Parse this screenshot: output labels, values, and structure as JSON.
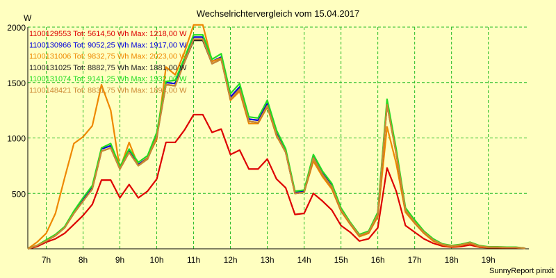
{
  "chart_data": {
    "type": "line",
    "title": "Wechselrichtervergleich vom 15.04.2017",
    "ylabel": "W",
    "xlabel": "",
    "footer": "SunnyReport pinxit",
    "xlim": [
      6.5,
      20.1
    ],
    "ylim": [
      0,
      2000
    ],
    "x_ticks": [
      7,
      8,
      9,
      10,
      11,
      12,
      13,
      14,
      15,
      16,
      17,
      18,
      19
    ],
    "x_tick_labels": [
      "7h",
      "8h",
      "9h",
      "10h",
      "11h",
      "12h",
      "13h",
      "14h",
      "15h",
      "16h",
      "17h",
      "18h",
      "19h"
    ],
    "y_ticks": [
      500,
      1000,
      1500,
      2000
    ],
    "y_tick_labels": [
      "500",
      "1000",
      "1500",
      "2000"
    ],
    "grid": true,
    "legend_position": "top-left",
    "x": [
      6.5,
      6.75,
      7.0,
      7.25,
      7.5,
      7.75,
      8.0,
      8.25,
      8.5,
      8.75,
      9.0,
      9.25,
      9.5,
      9.75,
      10.0,
      10.25,
      10.5,
      10.75,
      11.0,
      11.25,
      11.5,
      11.75,
      12.0,
      12.25,
      12.5,
      12.75,
      13.0,
      13.25,
      13.5,
      13.75,
      14.0,
      14.25,
      14.5,
      14.75,
      15.0,
      15.25,
      15.5,
      15.75,
      16.0,
      16.25,
      16.5,
      16.75,
      17.0,
      17.25,
      17.5,
      17.75,
      18.0,
      18.25,
      18.5,
      18.75,
      19.0,
      19.25,
      19.5,
      19.75,
      20.0
    ],
    "series": [
      {
        "name": "1100129553 Tot: 5614,50 Wh Max: 1218,00 W",
        "color": "#dd0000",
        "values": [
          0,
          20,
          60,
          90,
          140,
          220,
          300,
          400,
          620,
          620,
          460,
          580,
          460,
          520,
          630,
          960,
          960,
          1070,
          1210,
          1210,
          1050,
          1080,
          850,
          890,
          720,
          720,
          810,
          630,
          550,
          310,
          320,
          500,
          430,
          350,
          210,
          150,
          70,
          90,
          190,
          730,
          520,
          210,
          150,
          90,
          50,
          25,
          15,
          20,
          35,
          15,
          10,
          10,
          8,
          8,
          5
        ]
      },
      {
        "name": "1100130966 Tot: 9052,25 Wh Max: 1917,00 W",
        "color": "#0000dd",
        "values": [
          0,
          30,
          70,
          120,
          190,
          330,
          440,
          550,
          900,
          930,
          730,
          880,
          760,
          820,
          1030,
          1500,
          1490,
          1700,
          1910,
          1910,
          1690,
          1730,
          1370,
          1460,
          1170,
          1160,
          1310,
          1040,
          880,
          510,
          520,
          830,
          680,
          570,
          360,
          230,
          120,
          150,
          320,
          1330,
          880,
          360,
          250,
          150,
          80,
          40,
          25,
          35,
          55,
          25,
          15,
          15,
          12,
          12,
          5
        ]
      },
      {
        "name": "1100131006 Tot: 9832,75 Wh Max: 2023,00 W",
        "color": "#ee8800",
        "values": [
          0,
          60,
          140,
          320,
          640,
          950,
          1010,
          1110,
          1480,
          1250,
          720,
          960,
          750,
          820,
          990,
          1640,
          1570,
          1770,
          2020,
          2020,
          1690,
          1720,
          1340,
          1420,
          1130,
          1130,
          1280,
          1020,
          870,
          500,
          510,
          790,
          650,
          540,
          340,
          220,
          110,
          140,
          290,
          1100,
          770,
          330,
          230,
          140,
          70,
          35,
          20,
          30,
          50,
          20,
          12,
          12,
          10,
          10,
          5
        ]
      },
      {
        "name": "1100131025 Tot: 8882,75 Wh Max: 1881,00 W",
        "color": "#222222",
        "values": [
          0,
          30,
          70,
          120,
          190,
          320,
          430,
          540,
          880,
          910,
          720,
          870,
          750,
          810,
          1010,
          1480,
          1470,
          1680,
          1880,
          1880,
          1670,
          1710,
          1350,
          1440,
          1150,
          1140,
          1290,
          1030,
          870,
          500,
          510,
          820,
          670,
          560,
          350,
          230,
          120,
          150,
          310,
          1300,
          860,
          350,
          240,
          150,
          80,
          40,
          25,
          35,
          55,
          25,
          15,
          15,
          12,
          12,
          5
        ]
      },
      {
        "name": "1100131074 Tot: 9141,25 Wh Max: 1932,00 W",
        "color": "#22dd22",
        "values": [
          0,
          30,
          80,
          130,
          200,
          340,
          460,
          570,
          910,
          950,
          740,
          900,
          780,
          840,
          1050,
          1510,
          1520,
          1720,
          1930,
          1930,
          1710,
          1760,
          1400,
          1490,
          1190,
          1180,
          1340,
          1070,
          900,
          520,
          530,
          850,
          700,
          590,
          370,
          240,
          130,
          160,
          330,
          1350,
          900,
          370,
          260,
          160,
          90,
          45,
          30,
          40,
          60,
          30,
          18,
          18,
          15,
          15,
          5
        ]
      },
      {
        "name": "1100148421 Tot: 8831,75 Wh Max: 1894,00 W",
        "color": "#cc8833",
        "values": [
          0,
          30,
          70,
          120,
          190,
          320,
          430,
          540,
          880,
          910,
          720,
          870,
          750,
          810,
          1010,
          1480,
          1470,
          1680,
          1890,
          1890,
          1670,
          1710,
          1350,
          1440,
          1150,
          1140,
          1290,
          1030,
          870,
          500,
          510,
          820,
          670,
          560,
          350,
          230,
          120,
          150,
          310,
          1300,
          860,
          350,
          240,
          150,
          80,
          40,
          25,
          35,
          55,
          25,
          15,
          15,
          12,
          12,
          5
        ]
      }
    ]
  }
}
